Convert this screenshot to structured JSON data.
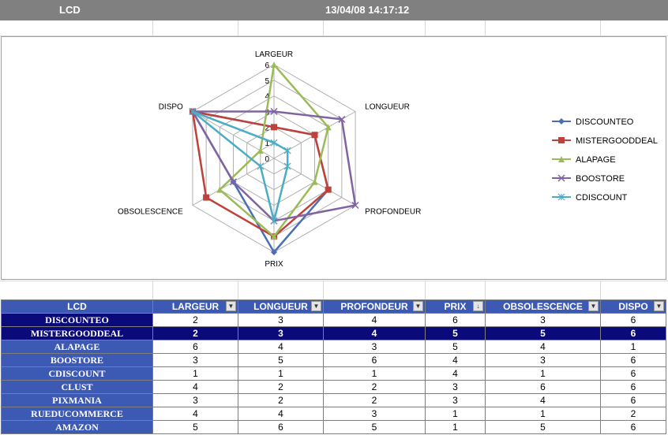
{
  "header": {
    "sheet_label": "LCD",
    "timestamp": "13/04/08 14:17:12"
  },
  "chart_data": {
    "type": "radar",
    "axes": [
      "LARGEUR",
      "LONGUEUR",
      "PROFONDEUR",
      "PRIX",
      "OBSOLESCENCE",
      "DISPO"
    ],
    "rlim": [
      0,
      6
    ],
    "ticks": [
      "0",
      "1",
      "2",
      "3",
      "4",
      "5",
      "6"
    ],
    "legend_position": "right",
    "series": [
      {
        "name": "DISCOUNTEO",
        "color": "#4a6fb5",
        "marker": "diamond",
        "values": [
          2,
          3,
          4,
          6,
          3,
          6
        ]
      },
      {
        "name": "MISTERGOODDEAL",
        "color": "#c0403a",
        "marker": "square",
        "values": [
          2,
          3,
          4,
          5,
          5,
          6
        ]
      },
      {
        "name": "ALAPAGE",
        "color": "#9bbb59",
        "marker": "triangle",
        "values": [
          6,
          4,
          3,
          5,
          4,
          1
        ]
      },
      {
        "name": "BOOSTORE",
        "color": "#8064a2",
        "marker": "x",
        "values": [
          3,
          5,
          6,
          4,
          3,
          6
        ]
      },
      {
        "name": "CDISCOUNT",
        "color": "#4bacc6",
        "marker": "star",
        "values": [
          1,
          1,
          1,
          4,
          1,
          6
        ]
      }
    ]
  },
  "table": {
    "corner": "LCD",
    "columns": [
      "LARGEUR",
      "LONGUEUR",
      "PROFONDEUR",
      "PRIX",
      "OBSOLESCENCE",
      "DISPO"
    ],
    "rows": [
      {
        "name": "DISCOUNTEO",
        "values": [
          "2",
          "3",
          "4",
          "6",
          "3",
          "6"
        ]
      },
      {
        "name": "MISTERGOODDEAL",
        "values": [
          "2",
          "3",
          "4",
          "5",
          "5",
          "6"
        ]
      },
      {
        "name": "ALAPAGE",
        "values": [
          "6",
          "4",
          "3",
          "5",
          "4",
          "1"
        ]
      },
      {
        "name": "BOOSTORE",
        "values": [
          "3",
          "5",
          "6",
          "4",
          "3",
          "6"
        ]
      },
      {
        "name": "CDISCOUNT",
        "values": [
          "1",
          "1",
          "1",
          "4",
          "1",
          "6"
        ]
      },
      {
        "name": "CLUST",
        "values": [
          "4",
          "2",
          "2",
          "3",
          "6",
          "6"
        ]
      },
      {
        "name": "PIXMANIA",
        "values": [
          "3",
          "2",
          "2",
          "3",
          "4",
          "6"
        ]
      },
      {
        "name": "RUEDUCOMMERCE",
        "values": [
          "4",
          "4",
          "3",
          "1",
          "1",
          "2"
        ]
      },
      {
        "name": "AMAZON",
        "values": [
          "5",
          "6",
          "5",
          "1",
          "5",
          "6"
        ]
      }
    ]
  }
}
